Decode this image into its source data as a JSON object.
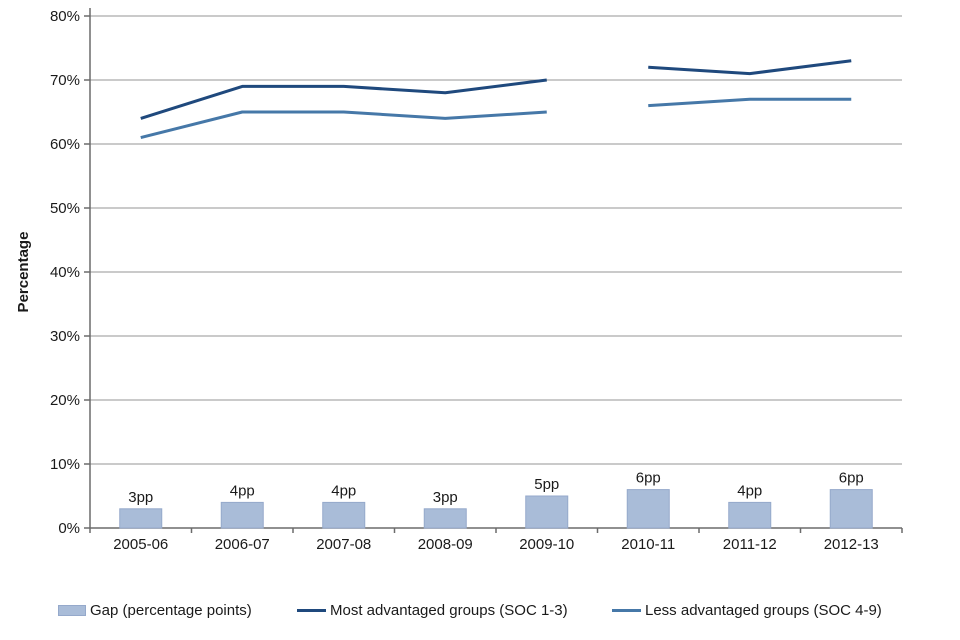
{
  "chart_data": {
    "type": "combo",
    "categories": [
      "2005-06",
      "2006-07",
      "2007-08",
      "2008-09",
      "2009-10",
      "2010-11",
      "2011-12",
      "2012-13"
    ],
    "y_axis": {
      "label": "Percentage",
      "min": 0,
      "max": 80,
      "step": 10,
      "tick_labels": [
        "0%",
        "10%",
        "20%",
        "30%",
        "40%",
        "50%",
        "60%",
        "70%",
        "80%"
      ]
    },
    "grid": true,
    "legend_position": "bottom",
    "series": [
      {
        "name": "Gap (percentage points)",
        "type": "bar",
        "values": [
          3,
          4,
          4,
          3,
          5,
          6,
          4,
          6
        ],
        "data_labels": [
          "3pp",
          "4pp",
          "4pp",
          "3pp",
          "5pp",
          "6pp",
          "4pp",
          "6pp"
        ],
        "color": "#A9BCD8",
        "border_color": "#95A9CB"
      },
      {
        "name": "Most advantaged groups (SOC 1-3)",
        "type": "line",
        "values": [
          64,
          69,
          69,
          68,
          70,
          72,
          71,
          73
        ],
        "break_after_index": 4,
        "color": "#1F497D"
      },
      {
        "name": "Less advantaged groups (SOC 4-9)",
        "type": "line",
        "values": [
          61,
          65,
          65,
          64,
          65,
          66,
          67,
          67
        ],
        "break_after_index": 4,
        "color": "#4678A8"
      }
    ],
    "colors": {
      "gridline": "#969696",
      "axis": "#6B6B6B",
      "text": "#1a1a1a"
    }
  }
}
